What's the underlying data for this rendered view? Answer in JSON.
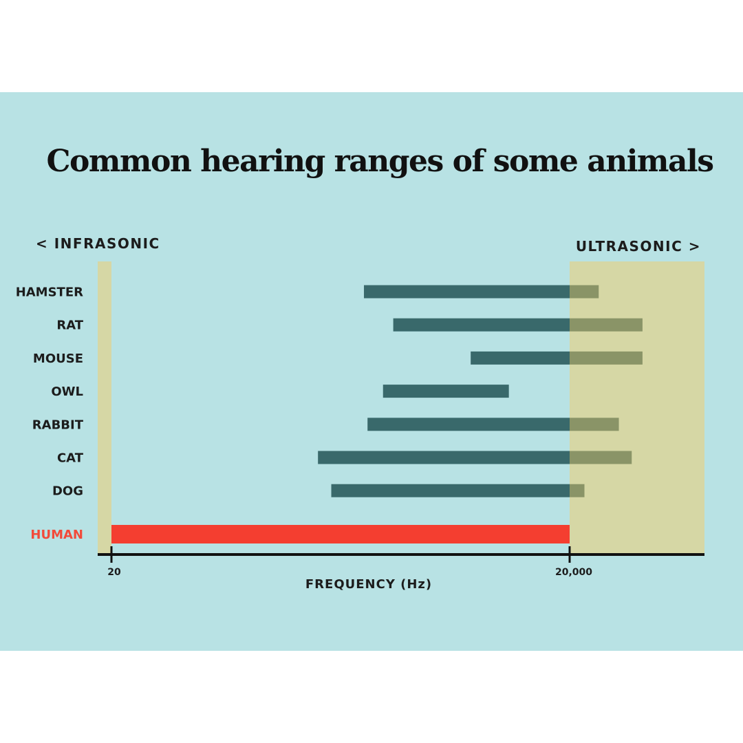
{
  "chart_data": {
    "type": "bar",
    "orientation": "horizontal",
    "title": "Common hearing ranges of some animals",
    "xlabel": "FREQUENCY (Hz)",
    "x_scale": "log",
    "x_ticks": [
      20,
      20000
    ],
    "x_tick_labels": [
      "20",
      "20,000"
    ],
    "xlim": [
      14,
      150000
    ],
    "zones": {
      "infrasonic": {
        "label": "< INFRASONIC",
        "max": 20
      },
      "ultrasonic": {
        "label": "ULTRASONIC >",
        "min": 20000
      }
    },
    "categories": [
      "HAMSTER",
      "RAT",
      "MOUSE",
      "OWL",
      "RABBIT",
      "CAT",
      "DOG",
      "HUMAN"
    ],
    "ranges": [
      [
        900,
        31000
      ],
      [
        1400,
        60000
      ],
      [
        4500,
        60000
      ],
      [
        1200,
        8000
      ],
      [
        950,
        42000
      ],
      [
        450,
        51000
      ],
      [
        550,
        25000
      ],
      [
        20,
        20000
      ]
    ],
    "highlight": "HUMAN",
    "colors": {
      "bar": "#39696b",
      "bar_in_ultrasonic": "#8a9467",
      "highlight_bar": "#f43e30",
      "highlight_label": "#f24a3a",
      "zone_fill": "#d6d7a5",
      "background": "#b8e2e4",
      "axis": "#111111"
    },
    "grid": false
  }
}
